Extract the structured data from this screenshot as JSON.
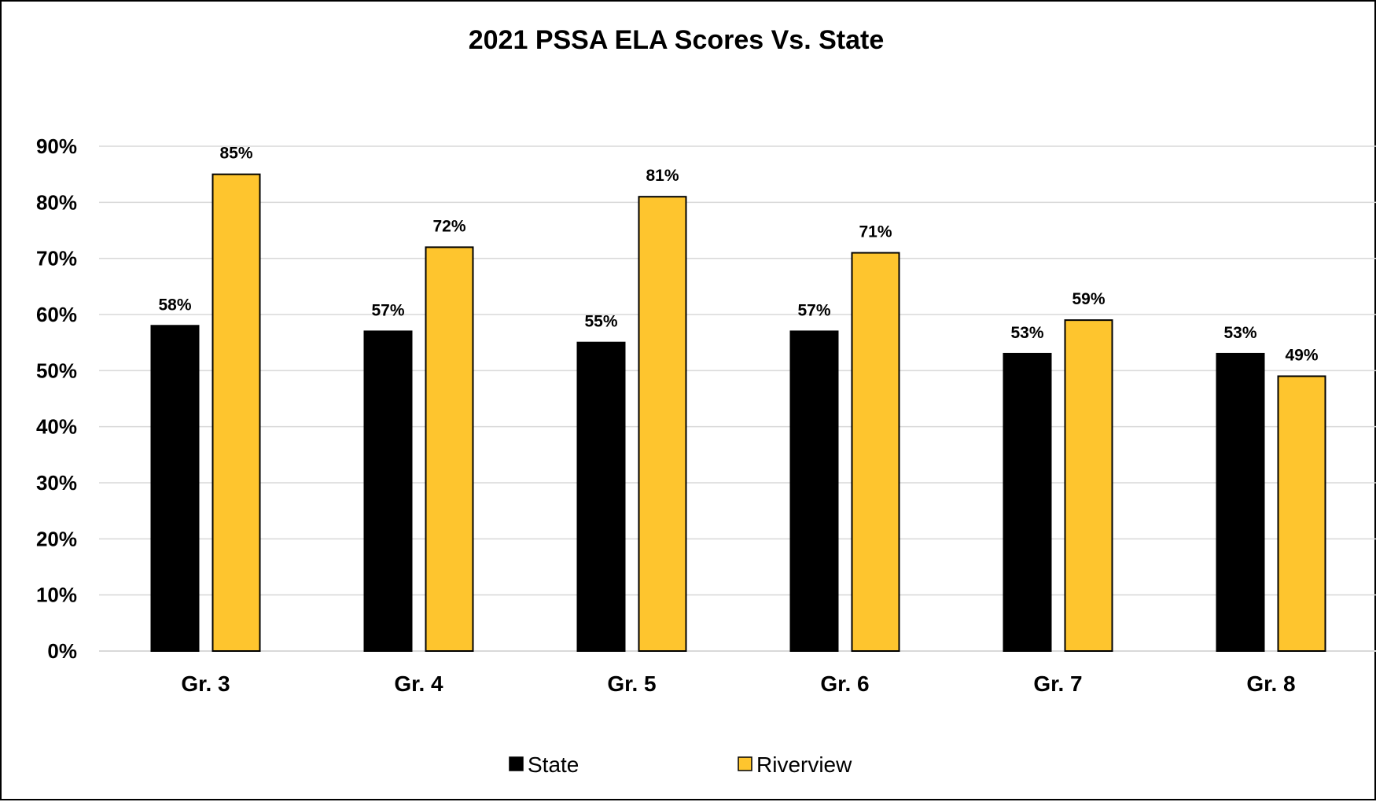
{
  "chart_data": {
    "type": "bar",
    "title": "2021 PSSA ELA Scores Vs. State",
    "xlabel": "",
    "ylabel": "",
    "categories": [
      "Gr. 3",
      "Gr. 4",
      "Gr. 5",
      "Gr. 6",
      "Gr. 7",
      "Gr. 8"
    ],
    "series": [
      {
        "name": "State",
        "values": [
          58,
          57,
          55,
          57,
          53,
          53
        ],
        "color": "#000000"
      },
      {
        "name": "Riverview",
        "values": [
          85,
          72,
          81,
          71,
          59,
          49
        ],
        "color": "#fec52e"
      }
    ],
    "ylim": [
      0,
      90
    ],
    "yticks": [
      0,
      10,
      20,
      30,
      40,
      50,
      60,
      70,
      80,
      90
    ],
    "ytick_labels": [
      "0%",
      "10%",
      "20%",
      "30%",
      "40%",
      "50%",
      "60%",
      "70%",
      "80%",
      "90%"
    ],
    "value_format": "%",
    "grid": true,
    "legend_position": "bottom"
  }
}
